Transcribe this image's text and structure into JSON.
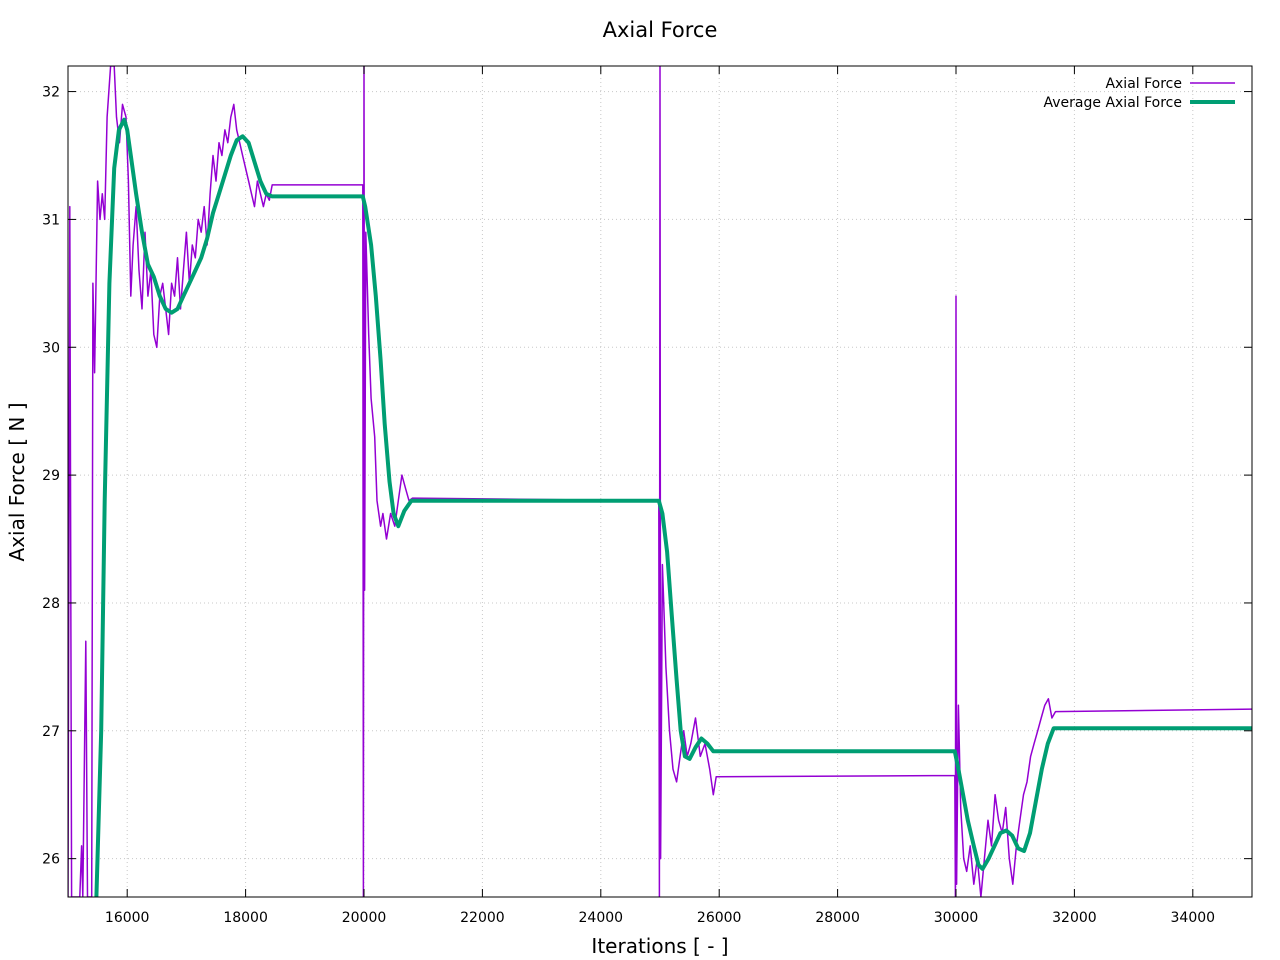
{
  "chart_data": {
    "type": "line",
    "title": "Axial Force",
    "xlabel": "Iterations [ - ]",
    "ylabel": "Axial Force [ N ]",
    "xlim": [
      15000,
      35000
    ],
    "ylim": [
      25.7,
      32.2
    ],
    "xticks": [
      16000,
      18000,
      20000,
      22000,
      24000,
      26000,
      28000,
      30000,
      32000,
      34000
    ],
    "yticks": [
      26,
      27,
      28,
      29,
      30,
      31,
      32
    ],
    "grid": true,
    "legend_position": "top-right",
    "series": [
      {
        "name": "Axial Force",
        "color": "#9400d3",
        "line_width": 1.5,
        "points": [
          [
            15000,
            25.7
          ],
          [
            15030,
            31.1
          ],
          [
            15060,
            25.7
          ],
          [
            15200,
            25.7
          ],
          [
            15230,
            26.1
          ],
          [
            15250,
            25.7
          ],
          [
            15300,
            27.7
          ],
          [
            15330,
            25.7
          ],
          [
            15400,
            25.7
          ],
          [
            15420,
            30.5
          ],
          [
            15450,
            29.8
          ],
          [
            15500,
            31.3
          ],
          [
            15540,
            31.0
          ],
          [
            15580,
            31.2
          ],
          [
            15620,
            31.0
          ],
          [
            15660,
            31.8
          ],
          [
            15720,
            32.2
          ],
          [
            15780,
            32.2
          ],
          [
            15820,
            31.8
          ],
          [
            15870,
            31.6
          ],
          [
            15920,
            31.9
          ],
          [
            15980,
            31.8
          ],
          [
            16020,
            31.3
          ],
          [
            16060,
            30.4
          ],
          [
            16100,
            30.8
          ],
          [
            16150,
            31.1
          ],
          [
            16200,
            30.6
          ],
          [
            16250,
            30.3
          ],
          [
            16300,
            30.9
          ],
          [
            16350,
            30.4
          ],
          [
            16400,
            30.6
          ],
          [
            16450,
            30.1
          ],
          [
            16500,
            30.0
          ],
          [
            16550,
            30.4
          ],
          [
            16600,
            30.5
          ],
          [
            16650,
            30.3
          ],
          [
            16700,
            30.1
          ],
          [
            16750,
            30.5
          ],
          [
            16800,
            30.4
          ],
          [
            16850,
            30.7
          ],
          [
            16900,
            30.3
          ],
          [
            16950,
            30.6
          ],
          [
            17000,
            30.9
          ],
          [
            17050,
            30.5
          ],
          [
            17100,
            30.8
          ],
          [
            17150,
            30.7
          ],
          [
            17200,
            31.0
          ],
          [
            17250,
            30.9
          ],
          [
            17300,
            31.1
          ],
          [
            17350,
            30.8
          ],
          [
            17400,
            31.2
          ],
          [
            17450,
            31.5
          ],
          [
            17500,
            31.3
          ],
          [
            17550,
            31.6
          ],
          [
            17600,
            31.5
          ],
          [
            17650,
            31.7
          ],
          [
            17700,
            31.6
          ],
          [
            17750,
            31.8
          ],
          [
            17800,
            31.9
          ],
          [
            17850,
            31.7
          ],
          [
            17900,
            31.6
          ],
          [
            17950,
            31.5
          ],
          [
            18000,
            31.4
          ],
          [
            18050,
            31.3
          ],
          [
            18100,
            31.2
          ],
          [
            18150,
            31.1
          ],
          [
            18200,
            31.3
          ],
          [
            18250,
            31.2
          ],
          [
            18300,
            31.1
          ],
          [
            18350,
            31.2
          ],
          [
            18400,
            31.15
          ],
          [
            18450,
            31.27
          ],
          [
            19980,
            31.27
          ],
          [
            19990,
            25.7
          ],
          [
            20000,
            32.2
          ],
          [
            20010,
            28.1
          ],
          [
            20030,
            30.9
          ],
          [
            20080,
            30.1
          ],
          [
            20120,
            29.6
          ],
          [
            20180,
            29.3
          ],
          [
            20220,
            28.8
          ],
          [
            20280,
            28.6
          ],
          [
            20320,
            28.7
          ],
          [
            20380,
            28.5
          ],
          [
            20450,
            28.7
          ],
          [
            20520,
            28.6
          ],
          [
            20580,
            28.8
          ],
          [
            20640,
            29.0
          ],
          [
            20700,
            28.9
          ],
          [
            20760,
            28.8
          ],
          [
            20820,
            28.82
          ],
          [
            24980,
            28.8
          ],
          [
            24990,
            25.7
          ],
          [
            25000,
            32.2
          ],
          [
            25010,
            26.0
          ],
          [
            25040,
            28.3
          ],
          [
            25100,
            27.5
          ],
          [
            25160,
            27.0
          ],
          [
            25220,
            26.7
          ],
          [
            25280,
            26.6
          ],
          [
            25340,
            26.8
          ],
          [
            25400,
            27.0
          ],
          [
            25460,
            26.8
          ],
          [
            25520,
            26.9
          ],
          [
            25600,
            27.1
          ],
          [
            25680,
            26.8
          ],
          [
            25760,
            26.9
          ],
          [
            25840,
            26.7
          ],
          [
            25900,
            26.5
          ],
          [
            25950,
            26.64
          ],
          [
            29980,
            26.65
          ],
          [
            29990,
            25.7
          ],
          [
            30000,
            30.4
          ],
          [
            30010,
            25.8
          ],
          [
            30040,
            27.2
          ],
          [
            30080,
            26.4
          ],
          [
            30130,
            26.0
          ],
          [
            30180,
            25.9
          ],
          [
            30240,
            26.1
          ],
          [
            30300,
            25.8
          ],
          [
            30360,
            26.0
          ],
          [
            30420,
            25.7
          ],
          [
            30480,
            26.0
          ],
          [
            30540,
            26.3
          ],
          [
            30600,
            26.1
          ],
          [
            30660,
            26.5
          ],
          [
            30720,
            26.3
          ],
          [
            30780,
            26.2
          ],
          [
            30840,
            26.4
          ],
          [
            30900,
            26.0
          ],
          [
            30960,
            25.8
          ],
          [
            31020,
            26.1
          ],
          [
            31080,
            26.3
          ],
          [
            31140,
            26.5
          ],
          [
            31200,
            26.6
          ],
          [
            31260,
            26.8
          ],
          [
            31320,
            26.9
          ],
          [
            31380,
            27.0
          ],
          [
            31440,
            27.1
          ],
          [
            31500,
            27.2
          ],
          [
            31560,
            27.25
          ],
          [
            31620,
            27.1
          ],
          [
            31680,
            27.15
          ],
          [
            35000,
            27.17
          ]
        ]
      },
      {
        "name": "Average Axial Force",
        "color": "#009e73",
        "line_width": 4,
        "points": [
          [
            15480,
            25.7
          ],
          [
            15560,
            27.0
          ],
          [
            15620,
            28.8
          ],
          [
            15700,
            30.5
          ],
          [
            15780,
            31.4
          ],
          [
            15860,
            31.7
          ],
          [
            15950,
            31.78
          ],
          [
            16000,
            31.7
          ],
          [
            16060,
            31.5
          ],
          [
            16150,
            31.2
          ],
          [
            16250,
            30.9
          ],
          [
            16350,
            30.65
          ],
          [
            16450,
            30.55
          ],
          [
            16550,
            30.4
          ],
          [
            16650,
            30.3
          ],
          [
            16750,
            30.27
          ],
          [
            16850,
            30.3
          ],
          [
            16950,
            30.4
          ],
          [
            17050,
            30.5
          ],
          [
            17150,
            30.6
          ],
          [
            17250,
            30.7
          ],
          [
            17350,
            30.85
          ],
          [
            17450,
            31.05
          ],
          [
            17550,
            31.2
          ],
          [
            17650,
            31.35
          ],
          [
            17750,
            31.5
          ],
          [
            17850,
            31.62
          ],
          [
            17950,
            31.65
          ],
          [
            18050,
            31.6
          ],
          [
            18150,
            31.45
          ],
          [
            18250,
            31.3
          ],
          [
            18350,
            31.2
          ],
          [
            18450,
            31.18
          ],
          [
            19980,
            31.18
          ],
          [
            20020,
            31.1
          ],
          [
            20120,
            30.8
          ],
          [
            20200,
            30.4
          ],
          [
            20280,
            29.9
          ],
          [
            20350,
            29.4
          ],
          [
            20430,
            28.95
          ],
          [
            20500,
            28.7
          ],
          [
            20580,
            28.6
          ],
          [
            20680,
            28.72
          ],
          [
            20800,
            28.8
          ],
          [
            24980,
            28.8
          ],
          [
            25040,
            28.7
          ],
          [
            25120,
            28.4
          ],
          [
            25200,
            27.9
          ],
          [
            25280,
            27.4
          ],
          [
            25350,
            27.0
          ],
          [
            25420,
            26.8
          ],
          [
            25500,
            26.78
          ],
          [
            25600,
            26.87
          ],
          [
            25700,
            26.94
          ],
          [
            25800,
            26.9
          ],
          [
            25900,
            26.84
          ],
          [
            29980,
            26.84
          ],
          [
            30040,
            26.7
          ],
          [
            30120,
            26.5
          ],
          [
            30200,
            26.3
          ],
          [
            30300,
            26.1
          ],
          [
            30380,
            25.95
          ],
          [
            30450,
            25.92
          ],
          [
            30550,
            26.0
          ],
          [
            30650,
            26.1
          ],
          [
            30750,
            26.2
          ],
          [
            30850,
            26.22
          ],
          [
            30950,
            26.18
          ],
          [
            31050,
            26.08
          ],
          [
            31150,
            26.06
          ],
          [
            31250,
            26.2
          ],
          [
            31350,
            26.45
          ],
          [
            31450,
            26.7
          ],
          [
            31550,
            26.9
          ],
          [
            31650,
            27.02
          ],
          [
            35000,
            27.02
          ]
        ]
      }
    ]
  }
}
